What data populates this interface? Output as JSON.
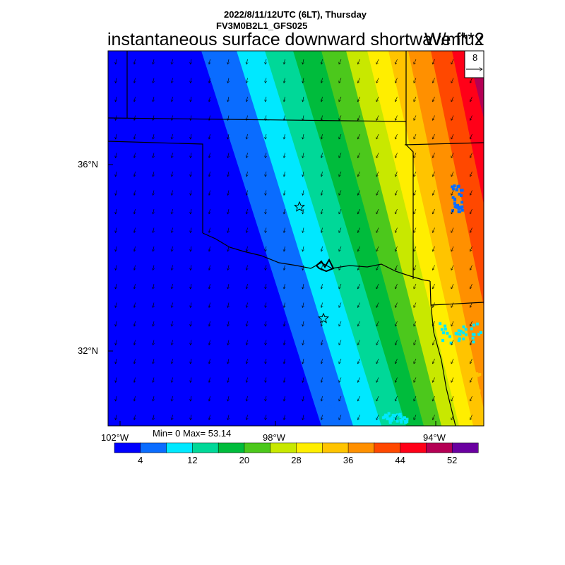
{
  "header": {
    "datetime": "2022/8/11/12UTC (6LT), Thursday",
    "model": "FV3M0B2L1_GFS025",
    "title": "instantaneous surface downward shortwave flux",
    "unit": "W/m**2"
  },
  "stats": {
    "text": "Min= 0 Max= 53.14"
  },
  "reference_vector": {
    "label": "8"
  },
  "axes": {
    "lat_ticks": [
      "36°N",
      "32°N"
    ],
    "lon_ticks": [
      "102°W",
      "98°W",
      "94°W"
    ]
  },
  "colorbar": {
    "colors": [
      "#0000ff",
      "#0a6cff",
      "#00e8ff",
      "#00d898",
      "#00bc3c",
      "#4cc81c",
      "#c8e800",
      "#ffee00",
      "#ffc400",
      "#ff9000",
      "#ff4800",
      "#ff0018",
      "#b40054",
      "#6a00a0"
    ],
    "tick_labels": [
      "4",
      "12",
      "20",
      "28",
      "36",
      "44",
      "52"
    ]
  }
}
